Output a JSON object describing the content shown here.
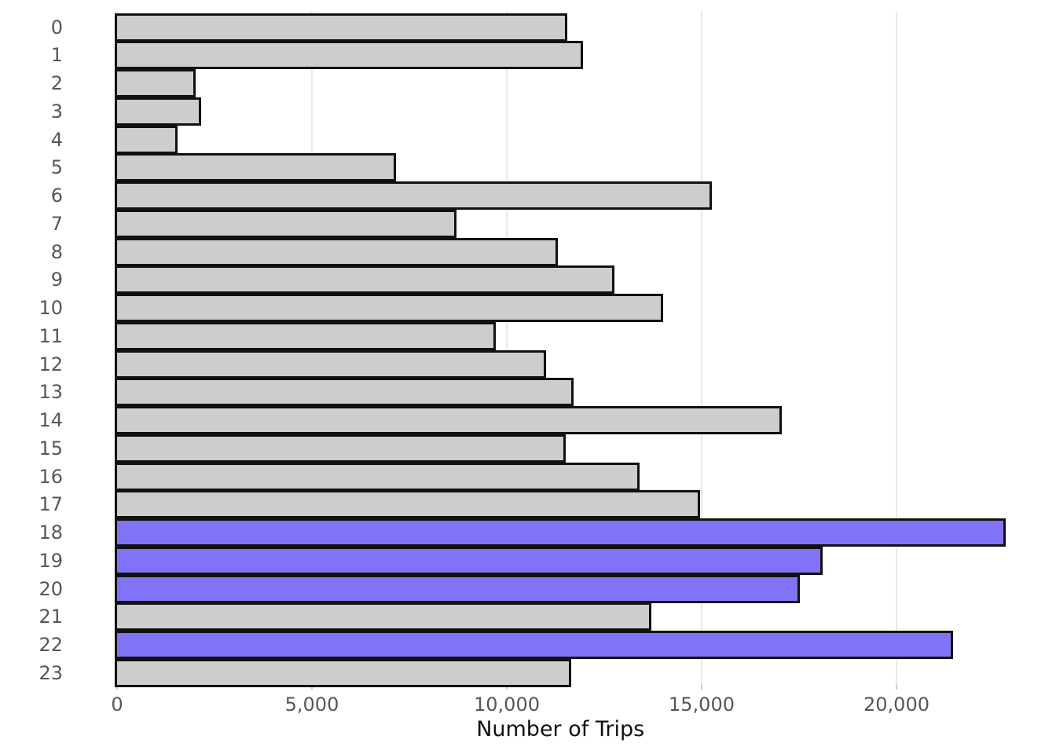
{
  "chart_data": {
    "type": "bar",
    "orientation": "horizontal",
    "title": "",
    "xlabel": "Number of Trips",
    "ylabel": "",
    "categories": [
      "0",
      "1",
      "2",
      "3",
      "4",
      "5",
      "6",
      "7",
      "8",
      "9",
      "10",
      "11",
      "12",
      "13",
      "14",
      "15",
      "16",
      "17",
      "18",
      "19",
      "20",
      "21",
      "22",
      "23"
    ],
    "values": [
      11500,
      11900,
      1950,
      2100,
      1500,
      7100,
      15200,
      8650,
      11250,
      12700,
      13950,
      9650,
      10950,
      11650,
      17000,
      11450,
      13350,
      14900,
      22750,
      18050,
      17450,
      13650,
      21400,
      11600
    ],
    "highlighted_indices": [
      18,
      19,
      20,
      22
    ],
    "x_ticks": {
      "values": [
        0,
        5000,
        10000,
        15000,
        20000
      ],
      "labels": [
        "0",
        "5,000",
        "10,000",
        "15,000",
        "20,000"
      ]
    },
    "xlim": [
      0,
      22750
    ],
    "grid": "vertical-only",
    "legend": "none",
    "colors": {
      "bar_fill": "#cdcdcd",
      "highlight_fill": "#8173f5",
      "bar_stroke": "#111111",
      "gridline": "#e9e9e9",
      "tick_mark": "#c9c9c9",
      "tick_label": "#565656",
      "axis_title": "#111111"
    }
  }
}
